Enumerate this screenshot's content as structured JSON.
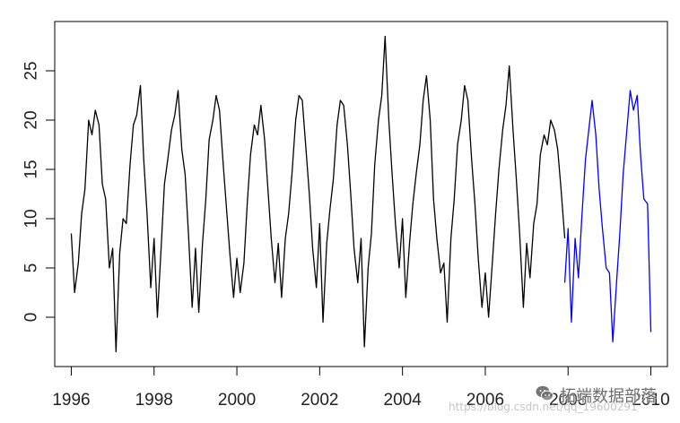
{
  "chart_data": {
    "type": "line",
    "title": "",
    "xlabel": "",
    "ylabel": "",
    "xlim": [
      1995.6,
      2010.4
    ],
    "ylim": [
      -5,
      30
    ],
    "x_ticks": [
      1996,
      1998,
      2000,
      2002,
      2004,
      2006,
      2008,
      2010
    ],
    "y_ticks": [
      0,
      5,
      10,
      15,
      20,
      25
    ],
    "grid": false,
    "legend": "none",
    "series": [
      {
        "color": "#000000",
        "x": [
          1996.0,
          1996.08,
          1996.17,
          1996.25,
          1996.33,
          1996.42,
          1996.5,
          1996.58,
          1996.67,
          1996.75,
          1996.83,
          1996.92,
          1997.0,
          1997.08,
          1997.17,
          1997.25,
          1997.33,
          1997.42,
          1997.5,
          1997.58,
          1997.67,
          1997.75,
          1997.83,
          1997.92,
          1998.0,
          1998.08,
          1998.17,
          1998.25,
          1998.33,
          1998.42,
          1998.5,
          1998.58,
          1998.67,
          1998.75,
          1998.83,
          1998.92,
          1999.0,
          1999.08,
          1999.17,
          1999.25,
          1999.33,
          1999.42,
          1999.5,
          1999.58,
          1999.67,
          1999.75,
          1999.83,
          1999.92,
          2000.0,
          2000.08,
          2000.17,
          2000.25,
          2000.33,
          2000.42,
          2000.5,
          2000.58,
          2000.67,
          2000.75,
          2000.83,
          2000.92,
          2001.0,
          2001.08,
          2001.17,
          2001.25,
          2001.33,
          2001.42,
          2001.5,
          2001.58,
          2001.67,
          2001.75,
          2001.83,
          2001.92,
          2002.0,
          2002.08,
          2002.17,
          2002.25,
          2002.33,
          2002.42,
          2002.5,
          2002.58,
          2002.67,
          2002.75,
          2002.83,
          2002.92,
          2003.0,
          2003.08,
          2003.17,
          2003.25,
          2003.33,
          2003.42,
          2003.5,
          2003.58,
          2003.67,
          2003.75,
          2003.83,
          2003.92,
          2004.0,
          2004.08,
          2004.17,
          2004.25,
          2004.33,
          2004.42,
          2004.5,
          2004.58,
          2004.67,
          2004.75,
          2004.83,
          2004.92,
          2005.0,
          2005.08,
          2005.17,
          2005.25,
          2005.33,
          2005.42,
          2005.5,
          2005.58,
          2005.67,
          2005.75,
          2005.83,
          2005.92,
          2006.0,
          2006.08,
          2006.17,
          2006.25,
          2006.33,
          2006.42,
          2006.5,
          2006.58,
          2006.67,
          2006.75,
          2006.83,
          2006.92,
          2007.0,
          2007.08,
          2007.17,
          2007.25,
          2007.33,
          2007.42,
          2007.5,
          2007.58,
          2007.67,
          2007.75,
          2007.83,
          2007.92
        ],
        "y": [
          8.5,
          2.5,
          5.5,
          10.5,
          13.0,
          20.0,
          18.5,
          21.0,
          19.5,
          13.5,
          12.0,
          5.0,
          7.0,
          -3.5,
          6.5,
          10.0,
          9.5,
          15.5,
          19.5,
          20.5,
          23.5,
          16.0,
          10.5,
          3.0,
          8.0,
          0.0,
          7.0,
          13.5,
          16.0,
          19.0,
          20.5,
          23.0,
          17.0,
          14.5,
          8.5,
          1.0,
          7.0,
          0.5,
          7.5,
          12.0,
          18.0,
          20.0,
          22.5,
          21.0,
          15.5,
          11.0,
          6.5,
          2.0,
          6.0,
          2.5,
          5.5,
          11.5,
          16.5,
          19.5,
          18.5,
          21.5,
          18.0,
          13.0,
          8.0,
          3.5,
          7.5,
          2.0,
          8.0,
          10.5,
          14.5,
          20.0,
          22.5,
          22.0,
          17.0,
          12.5,
          7.0,
          3.0,
          9.5,
          -0.5,
          7.5,
          11.0,
          14.0,
          19.5,
          22.0,
          21.5,
          17.5,
          12.5,
          7.0,
          3.5,
          8.0,
          -3.0,
          5.0,
          8.5,
          15.5,
          20.0,
          22.5,
          28.5,
          20.0,
          14.5,
          9.5,
          5.0,
          10.0,
          2.0,
          7.5,
          11.5,
          14.5,
          17.5,
          22.0,
          24.5,
          20.0,
          12.0,
          8.0,
          4.5,
          5.5,
          -0.5,
          8.0,
          12.0,
          17.5,
          20.0,
          23.5,
          22.0,
          16.0,
          11.5,
          6.0,
          1.0,
          4.5,
          0.0,
          5.5,
          10.5,
          15.0,
          19.0,
          21.5,
          25.5,
          19.0,
          14.0,
          8.5,
          1.0,
          7.5,
          4.0,
          9.5,
          11.5,
          16.5,
          18.5,
          17.5,
          20.0,
          19.0,
          17.0,
          13.0,
          8.0
        ]
      },
      {
        "color": "#0000ff",
        "x": [
          2007.92,
          2008.0,
          2008.08,
          2008.17,
          2008.25,
          2008.33,
          2008.42,
          2008.5,
          2008.58,
          2008.67,
          2008.75,
          2008.83,
          2008.92,
          2009.0,
          2009.08,
          2009.17,
          2009.25,
          2009.33,
          2009.42,
          2009.5,
          2009.58,
          2009.67,
          2009.75,
          2009.83,
          2009.92,
          2010.0
        ],
        "y": [
          3.5,
          9.0,
          -0.5,
          8.0,
          4.0,
          10.0,
          16.0,
          19.0,
          22.0,
          18.5,
          13.0,
          9.0,
          5.0,
          4.5,
          -2.5,
          3.5,
          8.5,
          14.5,
          19.0,
          23.0,
          21.0,
          22.5,
          16.5,
          12.0,
          11.5,
          -1.5
        ]
      }
    ]
  },
  "watermark": {
    "url_text": "https://blog.csdn.net/qq_19600291",
    "brand_text": "拓端数据部落",
    "logo_icon": "wechat-logo-icon"
  }
}
